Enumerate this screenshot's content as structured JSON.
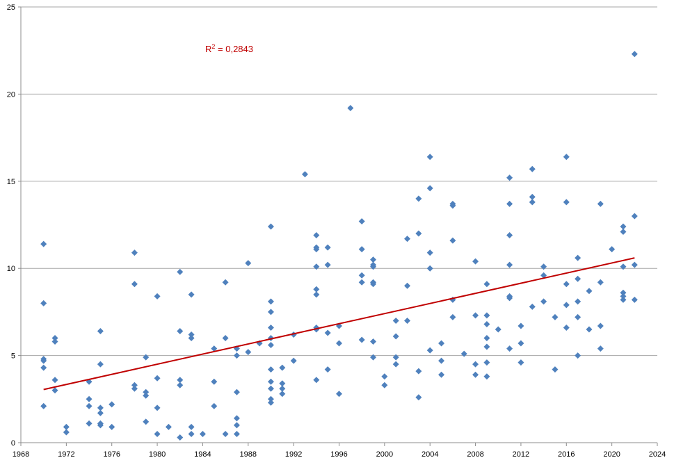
{
  "chart_data": {
    "type": "scatter",
    "title": "",
    "xlabel": "",
    "ylabel": "",
    "xlim": [
      1968,
      2024
    ],
    "ylim": [
      0,
      25
    ],
    "x_ticks": [
      "1968",
      "1972",
      "1976",
      "1980",
      "1984",
      "1988",
      "1992",
      "1996",
      "2000",
      "2004",
      "2008",
      "2012",
      "2016",
      "2020",
      "2024"
    ],
    "y_ticks": [
      "0",
      "5",
      "10",
      "15",
      "20",
      "25"
    ],
    "grid": "horizontal",
    "colors": {
      "points": "#4F81BD",
      "trendline": "#C00000",
      "grid": "#A6A6A6",
      "axis": "#8C8C8C",
      "label": "#000000"
    },
    "series": [
      {
        "points": [
          [
            1970,
            11.4
          ],
          [
            1970,
            8.0
          ],
          [
            1970,
            4.8
          ],
          [
            1970,
            4.7
          ],
          [
            1970,
            4.3
          ],
          [
            1970,
            2.1
          ],
          [
            1971,
            6.0
          ],
          [
            1971,
            5.8
          ],
          [
            1971,
            3.6
          ],
          [
            1971,
            3.0
          ],
          [
            1972,
            0.9
          ],
          [
            1972,
            0.6
          ],
          [
            1974,
            3.5
          ],
          [
            1974,
            2.5
          ],
          [
            1974,
            2.1
          ],
          [
            1974,
            1.1
          ],
          [
            1975,
            6.4
          ],
          [
            1975,
            4.5
          ],
          [
            1975,
            2.0
          ],
          [
            1975,
            1.7
          ],
          [
            1975,
            1.1
          ],
          [
            1975,
            1.0
          ],
          [
            1976,
            2.2
          ],
          [
            1976,
            0.9
          ],
          [
            1978,
            10.9
          ],
          [
            1978,
            9.1
          ],
          [
            1978,
            3.3
          ],
          [
            1978,
            3.1
          ],
          [
            1979,
            4.9
          ],
          [
            1979,
            2.9
          ],
          [
            1979,
            2.7
          ],
          [
            1979,
            1.2
          ],
          [
            1980,
            8.4
          ],
          [
            1980,
            3.7
          ],
          [
            1980,
            2.0
          ],
          [
            1980,
            0.5
          ],
          [
            1981,
            0.9
          ],
          [
            1982,
            9.8
          ],
          [
            1982,
            6.4
          ],
          [
            1982,
            3.6
          ],
          [
            1982,
            3.3
          ],
          [
            1982,
            0.3
          ],
          [
            1983,
            8.5
          ],
          [
            1983,
            6.2
          ],
          [
            1983,
            6.0
          ],
          [
            1983,
            0.9
          ],
          [
            1983,
            0.5
          ],
          [
            1984,
            0.5
          ],
          [
            1985,
            5.4
          ],
          [
            1985,
            3.5
          ],
          [
            1985,
            2.1
          ],
          [
            1986,
            9.2
          ],
          [
            1986,
            6.0
          ],
          [
            1986,
            0.5
          ],
          [
            1987,
            5.4
          ],
          [
            1987,
            5.0
          ],
          [
            1987,
            2.9
          ],
          [
            1987,
            1.4
          ],
          [
            1987,
            1.0
          ],
          [
            1987,
            0.5
          ],
          [
            1988,
            10.3
          ],
          [
            1988,
            5.2
          ],
          [
            1989,
            5.7
          ],
          [
            1990,
            12.4
          ],
          [
            1990,
            8.1
          ],
          [
            1990,
            7.5
          ],
          [
            1990,
            6.6
          ],
          [
            1990,
            6.0
          ],
          [
            1990,
            5.6
          ],
          [
            1990,
            4.2
          ],
          [
            1990,
            3.5
          ],
          [
            1990,
            3.1
          ],
          [
            1990,
            2.5
          ],
          [
            1990,
            2.3
          ],
          [
            1991,
            4.3
          ],
          [
            1991,
            3.4
          ],
          [
            1991,
            3.1
          ],
          [
            1991,
            2.8
          ],
          [
            1992,
            6.2
          ],
          [
            1992,
            4.7
          ],
          [
            1993,
            15.4
          ],
          [
            1994,
            11.9
          ],
          [
            1994,
            11.2
          ],
          [
            1994,
            11.1
          ],
          [
            1994,
            10.1
          ],
          [
            1994,
            8.8
          ],
          [
            1994,
            8.5
          ],
          [
            1994,
            6.6
          ],
          [
            1994,
            6.5
          ],
          [
            1994,
            3.6
          ],
          [
            1995,
            11.2
          ],
          [
            1995,
            10.2
          ],
          [
            1995,
            6.3
          ],
          [
            1995,
            4.2
          ],
          [
            1996,
            6.7
          ],
          [
            1996,
            5.7
          ],
          [
            1996,
            2.8
          ],
          [
            1997,
            19.2
          ],
          [
            1998,
            12.7
          ],
          [
            1998,
            11.1
          ],
          [
            1998,
            9.6
          ],
          [
            1998,
            9.2
          ],
          [
            1998,
            5.9
          ],
          [
            1999,
            10.5
          ],
          [
            1999,
            10.2
          ],
          [
            1999,
            10.1
          ],
          [
            1999,
            9.2
          ],
          [
            1999,
            9.1
          ],
          [
            1999,
            5.8
          ],
          [
            1999,
            4.9
          ],
          [
            2000,
            3.8
          ],
          [
            2000,
            3.3
          ],
          [
            2001,
            7.0
          ],
          [
            2001,
            6.1
          ],
          [
            2001,
            4.9
          ],
          [
            2001,
            4.5
          ],
          [
            2002,
            11.7
          ],
          [
            2002,
            9.0
          ],
          [
            2002,
            7.0
          ],
          [
            2003,
            14.0
          ],
          [
            2003,
            12.0
          ],
          [
            2003,
            4.1
          ],
          [
            2003,
            2.6
          ],
          [
            2004,
            16.4
          ],
          [
            2004,
            14.6
          ],
          [
            2004,
            10.9
          ],
          [
            2004,
            10.0
          ],
          [
            2004,
            5.3
          ],
          [
            2005,
            5.7
          ],
          [
            2005,
            4.7
          ],
          [
            2005,
            3.9
          ],
          [
            2006,
            13.7
          ],
          [
            2006,
            13.6
          ],
          [
            2006,
            11.6
          ],
          [
            2006,
            8.2
          ],
          [
            2006,
            7.2
          ],
          [
            2007,
            5.1
          ],
          [
            2008,
            10.4
          ],
          [
            2008,
            7.3
          ],
          [
            2008,
            4.5
          ],
          [
            2008,
            3.9
          ],
          [
            2009,
            9.1
          ],
          [
            2009,
            7.3
          ],
          [
            2009,
            6.8
          ],
          [
            2009,
            6.0
          ],
          [
            2009,
            5.5
          ],
          [
            2009,
            4.6
          ],
          [
            2009,
            3.8
          ],
          [
            2010,
            6.5
          ],
          [
            2011,
            15.2
          ],
          [
            2011,
            13.7
          ],
          [
            2011,
            11.9
          ],
          [
            2011,
            10.2
          ],
          [
            2011,
            8.4
          ],
          [
            2011,
            8.3
          ],
          [
            2011,
            5.4
          ],
          [
            2012,
            6.7
          ],
          [
            2012,
            5.7
          ],
          [
            2012,
            4.6
          ],
          [
            2013,
            15.7
          ],
          [
            2013,
            14.1
          ],
          [
            2013,
            13.8
          ],
          [
            2013,
            7.8
          ],
          [
            2014,
            10.1
          ],
          [
            2014,
            9.6
          ],
          [
            2014,
            8.1
          ],
          [
            2015,
            7.2
          ],
          [
            2015,
            4.2
          ],
          [
            2016,
            16.4
          ],
          [
            2016,
            13.8
          ],
          [
            2016,
            9.1
          ],
          [
            2016,
            7.9
          ],
          [
            2016,
            6.6
          ],
          [
            2017,
            10.6
          ],
          [
            2017,
            9.4
          ],
          [
            2017,
            8.1
          ],
          [
            2017,
            7.2
          ],
          [
            2017,
            5.0
          ],
          [
            2018,
            8.7
          ],
          [
            2018,
            6.5
          ],
          [
            2019,
            13.7
          ],
          [
            2019,
            9.2
          ],
          [
            2019,
            6.7
          ],
          [
            2019,
            5.4
          ],
          [
            2020,
            11.1
          ],
          [
            2021,
            12.4
          ],
          [
            2021,
            12.1
          ],
          [
            2021,
            10.1
          ],
          [
            2021,
            8.6
          ],
          [
            2021,
            8.4
          ],
          [
            2021,
            8.2
          ],
          [
            2022,
            22.3
          ],
          [
            2022,
            13.0
          ],
          [
            2022,
            10.2
          ],
          [
            2022,
            8.2
          ]
        ]
      }
    ],
    "trendline": {
      "x": [
        1970,
        2022
      ],
      "y": [
        3.05,
        10.6
      ]
    },
    "annotation": {
      "prefix": "R",
      "sup": "2",
      "text": " = 0,2843"
    }
  }
}
